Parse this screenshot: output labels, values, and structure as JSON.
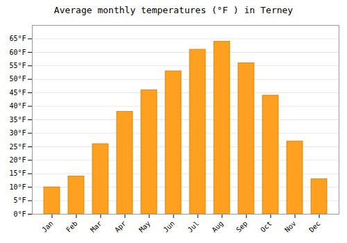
{
  "chart_data": {
    "type": "bar",
    "title": "Average monthly temperatures (°F ) in Terney",
    "categories": [
      "Jan",
      "Feb",
      "Mar",
      "Apr",
      "May",
      "Jun",
      "Jul",
      "Aug",
      "Sep",
      "Oct",
      "Nov",
      "Dec"
    ],
    "values": [
      10,
      14,
      26,
      38,
      46,
      53,
      61,
      64,
      56,
      44,
      27,
      13
    ],
    "color": "#FFA020",
    "ylim": [
      0,
      70
    ],
    "yticks": [
      {
        "value": 0,
        "label": "0°F"
      },
      {
        "value": 5,
        "label": "5°F"
      },
      {
        "value": 10,
        "label": "10°F"
      },
      {
        "value": 15,
        "label": "15°F"
      },
      {
        "value": 20,
        "label": "20°F"
      },
      {
        "value": 25,
        "label": "25°F"
      },
      {
        "value": 30,
        "label": "30°F"
      },
      {
        "value": 35,
        "label": "35°F"
      },
      {
        "value": 40,
        "label": "40°F"
      },
      {
        "value": 45,
        "label": "45°F"
      },
      {
        "value": 50,
        "label": "50°F"
      },
      {
        "value": 55,
        "label": "55°F"
      },
      {
        "value": 60,
        "label": "60°F"
      },
      {
        "value": 65,
        "label": "65°F"
      }
    ],
    "grid": true
  }
}
